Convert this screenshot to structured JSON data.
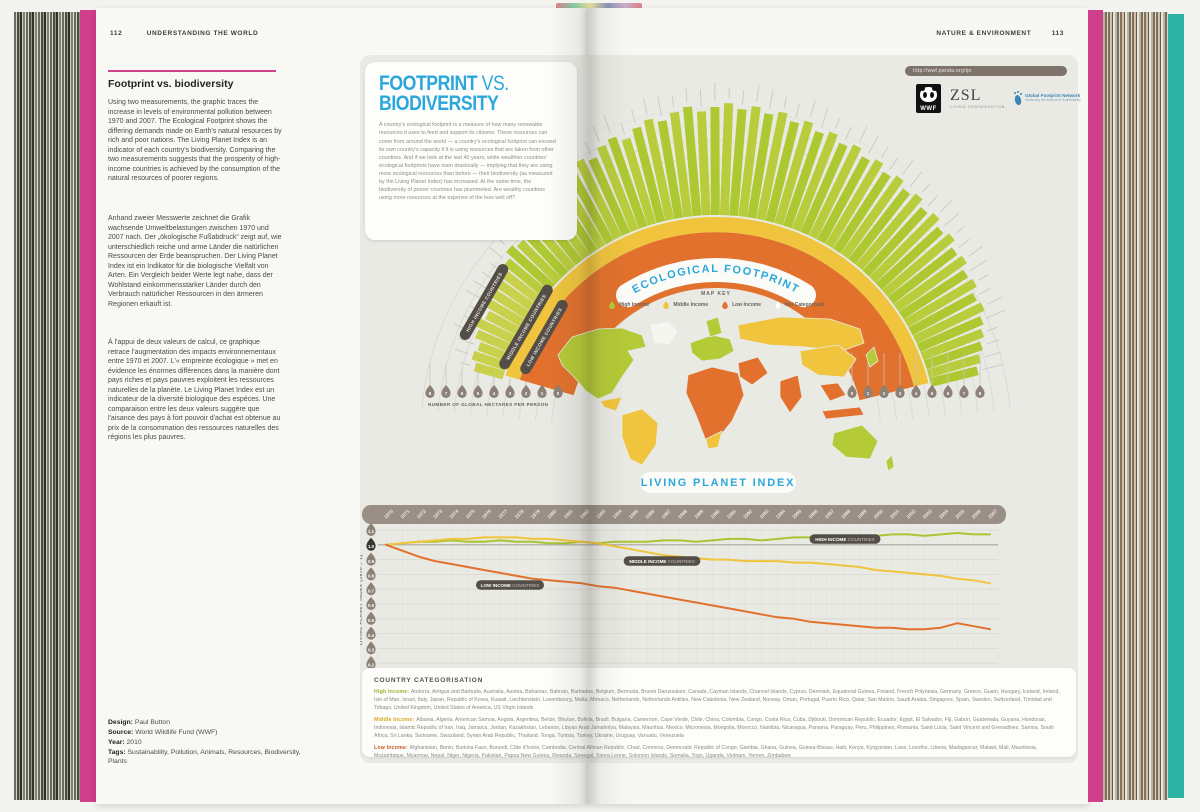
{
  "colors": {
    "pink": "#cf3f8b",
    "teal": "#2cb3a3",
    "blue": "#2ba7dc",
    "green": "#b4ca36",
    "flank_green": "#c9d04b",
    "yellow": "#f0c43d",
    "orange": "#e2712d",
    "taupe": "#998f87",
    "drop": "#8c8177",
    "drop_dark": "#3a3732",
    "pill": "#534e48"
  },
  "left_page": {
    "page_number": "112",
    "section": "UNDERSTANDING THE WORLD",
    "title": "Footprint vs. biodiversity",
    "paragraph_en": "Using two measurements, the graphic traces the increase in levels of environmental pollution between 1970 and 2007. The Ecological Footprint shows the differing demands made on Earth's natural resources by rich and poor nations. The Living Planet Index is an indicator of each country's biodiversity. Comparing the two measurements suggests that the prosperity of high-income countries is achieved by the consumption of the natural resources of poorer regions.",
    "paragraph_de": "Anhand zweier Messwerte zeichnet die Grafik wachsende Umweltbelastungen zwischen 1970 und 2007 nach. Der „ökologische Fußabdruck“ zeigt auf, wie unterschiedlich reiche und arme Länder die natürlichen Ressourcen der Erde beanspruchen. Der Living Planet Index ist ein Indikator für die biologische Vielfalt von Arten. Ein Vergleich beider Werte legt nahe, dass der Wohlstand einkommensstarker Länder durch den Verbrauch natürlicher Ressourcen in den ärmeren Regionen erkauft ist.",
    "paragraph_fr": "À l'appui de deux valeurs de calcul, ce graphique retrace l'augmentation des impacts environnementaux entre 1970 et 2007. L'« empreinte écologique » met en évidence les énormes différences dans la manière dont pays riches et pays pauvres exploitent les ressources naturelles de la planète. Le Living Planet Index est un indicateur de la diversité biologique des espèces. Une comparaison entre les deux valeurs suggère que l'aisance des pays à fort pouvoir d'achat est obtenue au prix de la consommation des ressources naturelles des régions les plus pauvres.",
    "credits": [
      {
        "label": "Design:",
        "value": "Paul Button"
      },
      {
        "label": "Source:",
        "value": "World Wildlife Fund (WWF)"
      },
      {
        "label": "Year:",
        "value": "2010"
      },
      {
        "label": "Tags:",
        "value": "Sustainability, Pollution, Animals, Resources, Biodiversity, Plants"
      }
    ]
  },
  "right_page": {
    "section": "NATURE & ENVIRONMENT",
    "page_number": "113"
  },
  "infographic": {
    "title_bold": "FOOTPRINT",
    "title_light": " VS.",
    "title_line2": "BIODIVERSITY",
    "intro": "A country's ecological footprint is a measure of how many renewable resources it uses to feed and support its citizens. These resources can come from around the world — a country's ecological footprint can exceed its own country's capacity if it is using resources that are taken from other countries. And if we look at the last 40 years, while wealthier countries' ecological footprints have risen drastically — implying that they are using more ecological resources than before — their biodiversity (as measured by the Living Planet Index) has increased. At the same time, the biodiversity of poorer countries has plummeted. Are wealthy countries using more resources at the expense of the less well off?",
    "url": "http://wwf.panda.org/lpr",
    "logos": {
      "wwf": "WWF",
      "zsl": "ZSL",
      "zsl_sub": "LIVING CONSERVATION",
      "gfn": "Global Footprint Network",
      "gfn_sub": "Advancing the Science of Sustainability"
    },
    "map_key": {
      "title": "MAP KEY",
      "items": [
        {
          "label": "High Income",
          "color": "#b4ca36"
        },
        {
          "label": "Middle Income",
          "color": "#f0c43d"
        },
        {
          "label": "Low Income",
          "color": "#e2712d"
        },
        {
          "label": "Not Categorised",
          "color": "#ffffff"
        }
      ]
    },
    "ribbons": [
      "HIGH INCOME COUNTRIES",
      "MIDDLE INCOME COUNTRIES",
      "LOW INCOME COUNTRIES"
    ],
    "footprint_banner": "ECOLOGICAL FOOTPRINT",
    "lpi_banner": "LIVING PLANET INDEX",
    "radial_unit_label": "NUMBER OF GLOBAL HECTARES PER PERSON",
    "categorisation": {
      "title": "COUNTRY CATEGORISATION",
      "groups": [
        {
          "label": "High Income:",
          "color": "#9ab32e",
          "countries": "Andorra, Antigua and Barbuda, Australia, Austria, Bahamas, Bahrain, Barbados, Belgium, Bermuda, Brunei Darussalam, Canada, Cayman Islands, Channel Islands, Cyprus, Denmark, Equatorial Guinea, Finland, French Polynesia, Germany, Greece, Guam, Hungary, Iceland, Ireland, Isle of Man, Israel, Italy, Japan, Republic of Korea, Kuwait, Liechtenstein, Luxembourg, Malta, Monaco, Netherlands, Netherlands Antilles, New Caledonia, New Zealand, Norway, Oman, Portugal, Puerto Rico, Qatar, San Marino, Saudi Arabia, Singapore, Spain, Sweden, Switzerland, Trinidad and Tobago, United Kingdom, United States of America, US Virgin Islands"
        },
        {
          "label": "Middle Income:",
          "color": "#d9a81f",
          "countries": "Albania, Algeria, American Samoa, Angola, Argentina, Belize, Bhutan, Bolivia, Brazil, Bulgaria, Cameroon, Cape Verde, Chile, China, Colombia, Congo, Costa Rica, Cuba, Djibouti, Dominican Republic, Ecuador, Egypt, El Salvador, Fiji, Gabon, Guatemala, Guyana, Honduras, Indonesia, Islamic Republic of Iran, Iraq, Jamaica, Jordan, Kazakhstan, Lebanon, Libyan Arab Jamahiriya, Malaysia, Mauritius, Mexico, Micronesia, Mongolia, Morocco, Namibia, Nicaragua, Panama, Paraguay, Peru, Philippines, Romania, Saint Lucia, Saint Vincent and Grenadines, Samoa, South Africa, Sri Lanka, Suriname, Swaziland, Syrian Arab Republic, Thailand, Tonga, Tunisia, Turkey, Ukraine, Uruguay, Vanuatu, Venezuela"
        },
        {
          "label": "Low Income:",
          "color": "#c85a1e",
          "countries": "Afghanistan, Benin, Burkina Faso, Burundi, Côte d'Ivoire, Cambodia, Central African Republic, Chad, Comoros, Democratic Republic of Congo, Gambia, Ghana, Guinea, Guinea-Bissau, Haiti, Kenya, Kyrgyzstan, Laos, Lesotho, Liberia, Madagascar, Malawi, Mali, Mauritania, Mozambique, Myanmar, Nepal, Niger, Nigeria, Pakistan, Papua New Guinea, Rwanda, Senegal, Sierra Leone, Solomon Islands, Somalia, Togo, Uganda, Vietnam, Yemen, Zimbabwe"
        }
      ]
    }
  },
  "chart_data": [
    {
      "type": "bar",
      "layout": "radial-fan",
      "title": "ECOLOGICAL FOOTPRINT",
      "unit_label": "NUMBER OF GLOBAL HECTARES PER PERSON",
      "scale_ticks": [
        8,
        7,
        6,
        5,
        4,
        3,
        2,
        1,
        0
      ],
      "flank_count": 10,
      "bars_gha": [
        2.2,
        2.6,
        2.4,
        2.9,
        3.2,
        2.8,
        3.4,
        3.1,
        3.6,
        3.3,
        3.8,
        4.3,
        4.0,
        4.6,
        5.0,
        4.7,
        5.3,
        5.7,
        5.4,
        6.0,
        6.4,
        6.1,
        6.7,
        7.0,
        6.6,
        7.2,
        7.6,
        7.3,
        7.8,
        8.1,
        7.7,
        8.0,
        8.3,
        7.9,
        8.2,
        7.8,
        8.1,
        7.6,
        7.9,
        7.4,
        7.7,
        7.2,
        7.5,
        7.0,
        7.3,
        6.8,
        7.1,
        6.6,
        6.9,
        6.4,
        6.7,
        6.2,
        6.5,
        6.0,
        6.2,
        5.7,
        5.9,
        5.4,
        5.6,
        5.1,
        4.8,
        4.4,
        4.0,
        3.6
      ],
      "inner_bands": {
        "low_income_outer_gha": 2.4,
        "middle_income_outer_gha": 3.2
      }
    },
    {
      "type": "line",
      "title": "LIVING PLANET INDEX",
      "ylabel": "LIVING PLANET INDEX (1970 = 1)",
      "ylim": [
        0.2,
        1.1
      ],
      "yticks": [
        "1.1",
        "1.0",
        "0.9",
        "0.8",
        "0.7",
        "0.6",
        "0.5",
        "0.4",
        "0.3",
        "0.2"
      ],
      "x": [
        1970,
        1971,
        1972,
        1973,
        1974,
        1975,
        1976,
        1977,
        1978,
        1979,
        1980,
        1981,
        1982,
        1983,
        1984,
        1985,
        1986,
        1987,
        1988,
        1989,
        1990,
        1991,
        1992,
        1993,
        1994,
        1995,
        1996,
        1997,
        1998,
        1999,
        2000,
        2001,
        2002,
        2003,
        2004,
        2005,
        2006,
        2007
      ],
      "series": [
        {
          "name": "HIGH INCOME COUNTRIES",
          "color": "#a9c434",
          "values": [
            1.0,
            1.01,
            1.02,
            1.02,
            1.03,
            1.02,
            1.02,
            1.03,
            1.02,
            1.02,
            1.01,
            1.01,
            1.02,
            1.01,
            1.02,
            1.02,
            1.02,
            1.03,
            1.03,
            1.02,
            1.03,
            1.04,
            1.04,
            1.03,
            1.04,
            1.05,
            1.05,
            1.04,
            1.05,
            1.06,
            1.06,
            1.07,
            1.07,
            1.06,
            1.07,
            1.08,
            1.07,
            1.07
          ]
        },
        {
          "name": "MIDDLE INCOME COUNTRIES",
          "color": "#f0c43d",
          "values": [
            1.0,
            1.01,
            1.02,
            1.03,
            1.04,
            1.04,
            1.05,
            1.05,
            1.05,
            1.04,
            1.04,
            1.03,
            1.02,
            1.01,
            0.99,
            0.97,
            0.95,
            0.93,
            0.92,
            0.91,
            0.9,
            0.9,
            0.89,
            0.89,
            0.89,
            0.88,
            0.88,
            0.87,
            0.86,
            0.85,
            0.83,
            0.82,
            0.81,
            0.8,
            0.79,
            0.77,
            0.76,
            0.74
          ]
        },
        {
          "name": "LOW INCOME COUNTRIES",
          "color": "#e2712d",
          "values": [
            1.0,
            0.96,
            0.92,
            0.89,
            0.87,
            0.85,
            0.83,
            0.81,
            0.79,
            0.77,
            0.76,
            0.75,
            0.74,
            0.72,
            0.71,
            0.69,
            0.67,
            0.65,
            0.63,
            0.61,
            0.59,
            0.57,
            0.55,
            0.53,
            0.51,
            0.5,
            0.48,
            0.47,
            0.46,
            0.45,
            0.44,
            0.44,
            0.43,
            0.43,
            0.44,
            0.47,
            0.45,
            0.43
          ]
        }
      ],
      "legend_position": "on-line-pills"
    }
  ]
}
